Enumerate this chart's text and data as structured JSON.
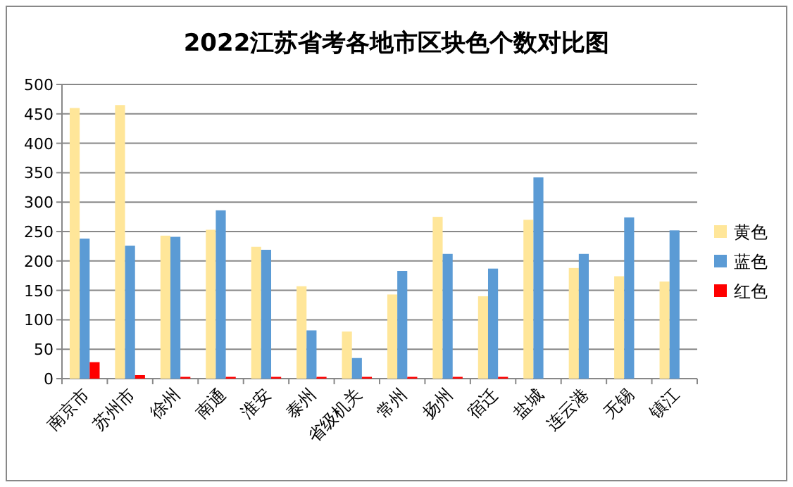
{
  "chart_data": {
    "type": "bar",
    "title": "2022江苏省考各地市区块色个数对比图",
    "categories": [
      "南京市",
      "苏州市",
      "徐州",
      "南通",
      "淮安",
      "泰州",
      "省级机关",
      "常州",
      "扬州",
      "宿迁",
      "盐城",
      "连云港",
      "无锡",
      "镇江"
    ],
    "series": [
      {
        "name": "黄色",
        "color": "#ffe699",
        "values": [
          460,
          465,
          243,
          253,
          224,
          157,
          80,
          143,
          275,
          140,
          270,
          188,
          174,
          165
        ]
      },
      {
        "name": "蓝色",
        "color": "#5b9bd5",
        "values": [
          238,
          226,
          241,
          286,
          219,
          82,
          35,
          183,
          212,
          187,
          342,
          212,
          274,
          252
        ]
      },
      {
        "name": "红色",
        "color": "#ff0000",
        "values": [
          28,
          6,
          3,
          3,
          3,
          3,
          3,
          3,
          3,
          3,
          null,
          0,
          0,
          0
        ]
      }
    ],
    "ylim": [
      0,
      500
    ],
    "yticks": [
      0,
      50,
      100,
      150,
      200,
      250,
      300,
      350,
      400,
      450,
      500
    ],
    "grid": "y",
    "legend": "right"
  }
}
